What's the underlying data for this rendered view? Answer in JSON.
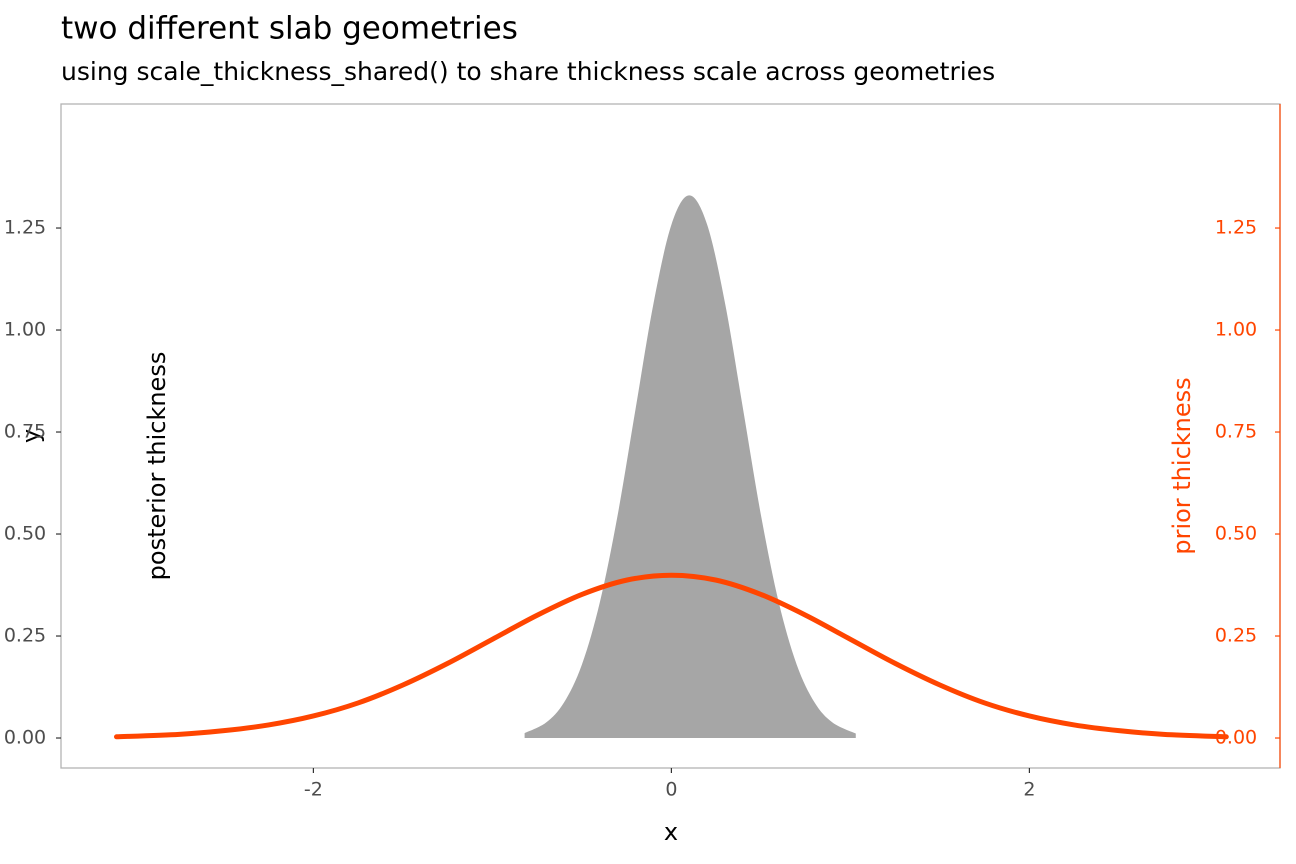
{
  "chart_data": {
    "type": "area_line",
    "title": "two different slab geometries",
    "subtitle": "using scale_thickness_shared() to share thickness scale across geometries",
    "xlabel": "x",
    "ylabel": "y",
    "y2label": "prior thickness",
    "annotations": [
      "posterior thickness"
    ],
    "xlim": [
      -3.41,
      3.4
    ],
    "ylim": [
      -0.0735,
      1.554
    ],
    "y2lim": [
      -0.0735,
      1.554
    ],
    "xticks": [
      -2,
      0,
      2
    ],
    "yticks": [
      {
        "value": 0,
        "label": "0.00"
      },
      0.25,
      {
        "value": 0.5,
        "label": "0.50"
      },
      0.75,
      {
        "value": 1,
        "label": "1.00"
      },
      1.25
    ],
    "y2ticks": [
      {
        "value": 0,
        "label": "0.00"
      },
      0.25,
      {
        "value": 0.5,
        "label": "0.50"
      },
      0.75,
      {
        "value": 1,
        "label": "1.00"
      },
      1.25
    ],
    "y2color": "#ff4500",
    "grid": false,
    "series": [
      {
        "type": "area",
        "color": "#a6a6a6",
        "x": [
          -0.82,
          -0.7,
          -0.6,
          -0.5,
          -0.4,
          -0.3,
          -0.2,
          -0.1,
          0,
          0.1,
          0.2,
          0.3,
          0.4,
          0.5,
          0.6,
          0.7,
          0.8,
          0.9,
          1.03
        ],
        "values": [
          0.012,
          0.038,
          0.087,
          0.18,
          0.332,
          0.547,
          0.807,
          1.065,
          1.258,
          1.33,
          1.258,
          1.065,
          0.807,
          0.547,
          0.332,
          0.18,
          0.087,
          0.038,
          0.011
        ]
      },
      {
        "type": "line",
        "axis": "y2",
        "color": "#ff4500",
        "x": [
          -3.1,
          -2.75,
          -2.5,
          -2.25,
          -2,
          -1.75,
          -1.5,
          -1.25,
          -1,
          -0.75,
          -0.5,
          -0.25,
          0,
          0.25,
          0.5,
          0.75,
          1,
          1.25,
          1.5,
          1.75,
          2,
          2.25,
          2.5,
          2.75,
          3.1
        ],
        "values": [
          0.003,
          0.009,
          0.018,
          0.032,
          0.054,
          0.086,
          0.13,
          0.183,
          0.242,
          0.301,
          0.352,
          0.387,
          0.399,
          0.387,
          0.352,
          0.301,
          0.242,
          0.183,
          0.13,
          0.086,
          0.054,
          0.032,
          0.018,
          0.009,
          0.003
        ]
      }
    ]
  }
}
